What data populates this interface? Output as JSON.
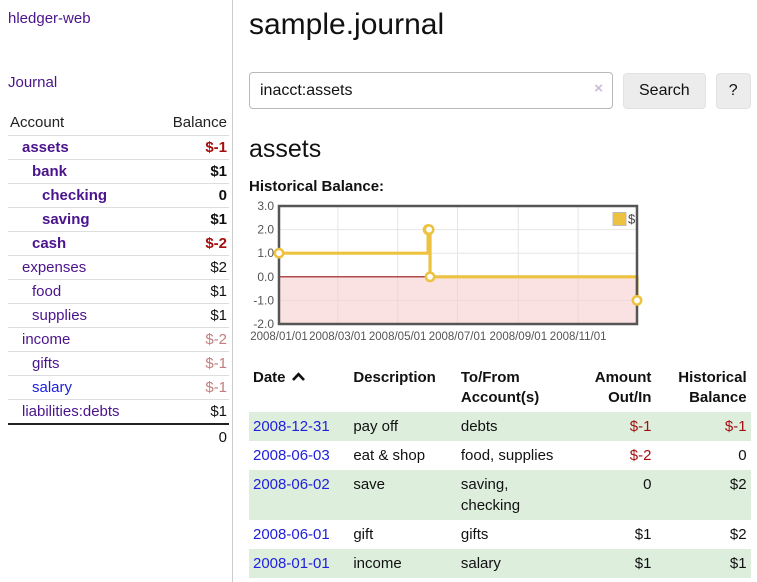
{
  "sidebar": {
    "brand": "hledger-web",
    "nav": {
      "journal": "Journal"
    },
    "table": {
      "account_header": "Account",
      "balance_header": "Balance"
    },
    "accounts": [
      {
        "name": "assets",
        "balance": "$-1",
        "depth": 1,
        "bold": true,
        "neg": "strong",
        "blue": false
      },
      {
        "name": "bank",
        "balance": "$1",
        "depth": 2,
        "bold": true,
        "neg": null,
        "blue": false
      },
      {
        "name": "checking",
        "balance": "0",
        "depth": 3,
        "bold": true,
        "neg": null,
        "blue": false
      },
      {
        "name": "saving",
        "balance": "$1",
        "depth": 3,
        "bold": true,
        "neg": null,
        "blue": false
      },
      {
        "name": "cash",
        "balance": "$-2",
        "depth": 2,
        "bold": true,
        "neg": "strong",
        "blue": false
      },
      {
        "name": "expenses",
        "balance": "$2",
        "depth": 1,
        "bold": false,
        "neg": null,
        "blue": false
      },
      {
        "name": "food",
        "balance": "$1",
        "depth": 2,
        "bold": false,
        "neg": null,
        "blue": false
      },
      {
        "name": "supplies",
        "balance": "$1",
        "depth": 2,
        "bold": false,
        "neg": null,
        "blue": false
      },
      {
        "name": "income",
        "balance": "$-2",
        "depth": 1,
        "bold": false,
        "neg": "soft",
        "blue": false
      },
      {
        "name": "gifts",
        "balance": "$-1",
        "depth": 2,
        "bold": false,
        "neg": "soft",
        "blue": false
      },
      {
        "name": "salary",
        "balance": "$-1",
        "depth": 2,
        "bold": false,
        "neg": "soft",
        "blue": true
      },
      {
        "name": "liabilities:debts",
        "balance": "$1",
        "depth": 1,
        "bold": false,
        "neg": null,
        "blue": false
      }
    ],
    "total": "0"
  },
  "main": {
    "title": "sample.journal",
    "search": {
      "value": "inacct:assets",
      "clear": "×",
      "search_button": "Search",
      "help_button": "?"
    },
    "account_heading": "assets",
    "chart_label": "Historical Balance:"
  },
  "chart_data": {
    "type": "line",
    "title": "Historical Balance",
    "x_type": "date",
    "xlim": [
      "2008-01-01",
      "2008-12-31"
    ],
    "ylim": [
      -2,
      3
    ],
    "yticks": [
      "3.0",
      "2.0",
      "1.0",
      "0.0",
      "-1.0",
      "-2.0"
    ],
    "xticks": [
      {
        "label": "2008/01/01",
        "date": "2008-01-01"
      },
      {
        "label": "2008/03/01",
        "date": "2008-03-01"
      },
      {
        "label": "2008/05/01",
        "date": "2008-05-01"
      },
      {
        "label": "2008/07/01",
        "date": "2008-07-01"
      },
      {
        "label": "2008/09/01",
        "date": "2008-09-01"
      },
      {
        "label": "2008/11/01",
        "date": "2008-11-01"
      }
    ],
    "series": [
      {
        "name": "$",
        "color": "#edc240",
        "step": true,
        "points": [
          [
            "2008-01-01",
            1
          ],
          [
            "2008-06-01",
            2
          ],
          [
            "2008-06-02",
            2
          ],
          [
            "2008-06-03",
            0
          ],
          [
            "2008-12-31",
            -1
          ]
        ]
      }
    ],
    "legend": {
      "position": "top-right",
      "entries": [
        {
          "label": "$",
          "color": "#edc240"
        }
      ]
    },
    "grid": true,
    "negative_fill": "#f8caca",
    "zero_line_color": "#991111",
    "grid_color": "#e6e6e6",
    "border_color": "#555555",
    "tick_color": "#545454"
  },
  "register": {
    "headers": {
      "date": "Date",
      "description": "Description",
      "account": "To/From Account(s)",
      "amount": "Amount Out/In",
      "balance": "Historical Balance"
    },
    "rows": [
      {
        "date": "2008-12-31",
        "description": "pay off",
        "accounts": "debts",
        "amount": "$-1",
        "balance": "$-1",
        "amount_neg": true,
        "balance_neg": true
      },
      {
        "date": "2008-06-03",
        "description": "eat & shop",
        "accounts": "food, supplies",
        "amount": "$-2",
        "balance": "0",
        "amount_neg": true,
        "balance_neg": false
      },
      {
        "date": "2008-06-02",
        "description": "save",
        "accounts": "saving, checking",
        "amount": "0",
        "balance": "$2",
        "amount_neg": false,
        "balance_neg": false
      },
      {
        "date": "2008-06-01",
        "description": "gift",
        "accounts": "gifts",
        "amount": "$1",
        "balance": "$2",
        "amount_neg": false,
        "balance_neg": false
      },
      {
        "date": "2008-01-01",
        "description": "income",
        "accounts": "salary",
        "amount": "$1",
        "balance": "$1",
        "amount_neg": false,
        "balance_neg": false
      }
    ]
  },
  "colors": {
    "purple": "#4a148c",
    "link_blue": "#2020dd",
    "negative": "#a40e0e",
    "negative_soft": "#c17f7f",
    "row_green": "#ddeedd",
    "series_yellow": "#edc240"
  }
}
